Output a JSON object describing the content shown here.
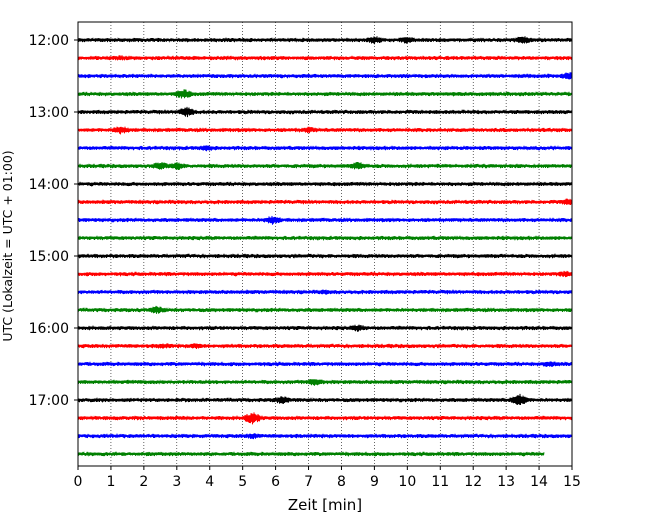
{
  "chart_data": {
    "type": "line",
    "title": "",
    "xlabel": "Zeit  [min]",
    "ylabel": "UTC (Lokalzeit = UTC + 01:00)",
    "xlim": [
      0,
      15
    ],
    "xticks": [
      0,
      1,
      2,
      3,
      4,
      5,
      6,
      7,
      8,
      9,
      10,
      11,
      12,
      13,
      14,
      15
    ],
    "ylim_minutes": [
      0,
      357
    ],
    "yticks": [
      {
        "label": "12:00",
        "minute": 0
      },
      {
        "label": "13:00",
        "minute": 60
      },
      {
        "label": "14:00",
        "minute": 120
      },
      {
        "label": "15:00",
        "minute": 180
      },
      {
        "label": "16:00",
        "minute": 240
      },
      {
        "label": "17:00",
        "minute": 300
      }
    ],
    "grid": "vertical dotted lines at each minute",
    "colors": [
      "#000000",
      "#ff0000",
      "#0000ff",
      "#008000"
    ],
    "series": [
      {
        "start": "12:00",
        "color": "#000000",
        "x_end": 15,
        "events": [
          [
            9.0,
            3
          ],
          [
            10.0,
            2.5
          ],
          [
            13.5,
            3
          ]
        ]
      },
      {
        "start": "12:15",
        "color": "#ff0000",
        "x_end": 15,
        "events": [
          [
            1.3,
            1.5
          ]
        ]
      },
      {
        "start": "12:30",
        "color": "#0000ff",
        "x_end": 15,
        "events": [
          [
            14.9,
            3
          ]
        ]
      },
      {
        "start": "12:45",
        "color": "#008000",
        "x_end": 15,
        "events": [
          [
            3.2,
            4
          ]
        ]
      },
      {
        "start": "13:00",
        "color": "#000000",
        "x_end": 15,
        "events": [
          [
            3.3,
            4
          ]
        ]
      },
      {
        "start": "13:15",
        "color": "#ff0000",
        "x_end": 15,
        "events": [
          [
            1.3,
            3.5
          ],
          [
            7.0,
            2
          ]
        ]
      },
      {
        "start": "13:30",
        "color": "#0000ff",
        "x_end": 15,
        "events": [
          [
            3.9,
            2
          ]
        ]
      },
      {
        "start": "13:45",
        "color": "#008000",
        "x_end": 15,
        "events": [
          [
            2.5,
            3
          ],
          [
            3.0,
            3
          ],
          [
            8.5,
            3
          ]
        ]
      },
      {
        "start": "14:00",
        "color": "#000000",
        "x_end": 15,
        "events": []
      },
      {
        "start": "14:15",
        "color": "#ff0000",
        "x_end": 15,
        "events": [
          [
            14.9,
            2.5
          ]
        ]
      },
      {
        "start": "14:30",
        "color": "#0000ff",
        "x_end": 15,
        "events": [
          [
            5.9,
            3.5
          ]
        ]
      },
      {
        "start": "14:45",
        "color": "#008000",
        "x_end": 15,
        "events": []
      },
      {
        "start": "15:00",
        "color": "#000000",
        "x_end": 15,
        "events": []
      },
      {
        "start": "15:15",
        "color": "#ff0000",
        "x_end": 15,
        "events": [
          [
            14.8,
            2
          ]
        ]
      },
      {
        "start": "15:30",
        "color": "#0000ff",
        "x_end": 15,
        "events": [
          [
            7.5,
            1.5
          ]
        ]
      },
      {
        "start": "15:45",
        "color": "#008000",
        "x_end": 15,
        "events": [
          [
            2.4,
            3
          ]
        ]
      },
      {
        "start": "16:00",
        "color": "#000000",
        "x_end": 15,
        "events": [
          [
            8.5,
            2.5
          ]
        ]
      },
      {
        "start": "16:15",
        "color": "#ff0000",
        "x_end": 15,
        "events": [
          [
            2.6,
            2
          ],
          [
            3.6,
            2
          ]
        ]
      },
      {
        "start": "16:30",
        "color": "#0000ff",
        "x_end": 15,
        "events": [
          [
            14.3,
            2
          ]
        ]
      },
      {
        "start": "16:45",
        "color": "#008000",
        "x_end": 15,
        "events": [
          [
            7.2,
            3
          ]
        ]
      },
      {
        "start": "17:00",
        "color": "#000000",
        "x_end": 15,
        "events": [
          [
            6.2,
            3
          ],
          [
            13.4,
            5
          ]
        ]
      },
      {
        "start": "17:15",
        "color": "#ff0000",
        "x_end": 15,
        "events": [
          [
            5.3,
            5
          ]
        ]
      },
      {
        "start": "17:30",
        "color": "#0000ff",
        "x_end": 15,
        "events": [
          [
            5.3,
            2
          ]
        ]
      },
      {
        "start": "17:45",
        "color": "#008000",
        "x_end": 14.15,
        "events": []
      }
    ]
  }
}
